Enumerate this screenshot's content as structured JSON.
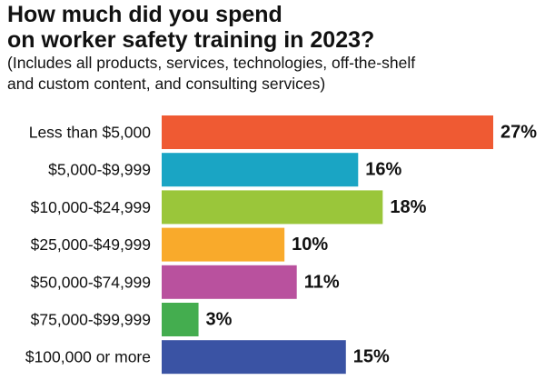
{
  "chart_data": {
    "type": "bar",
    "orientation": "horizontal",
    "title": "How much did you spend on worker safety training in 2023?",
    "title_lines": [
      "How much did you spend",
      "on worker safety training in 2023?"
    ],
    "subtitle": "(Includes all products, services, technologies, off-the-shelf and custom content, and consulting services)",
    "subtitle_lines": [
      "(Includes all products, services, technologies, off-the-shelf",
      "and custom content, and consulting services)"
    ],
    "categories": [
      "Less than $5,000",
      "$5,000-$9,999",
      "$10,000-$24,999",
      "$25,000-$49,999",
      "$50,000-$74,999",
      "$75,000-$99,999",
      "$100,000 or more"
    ],
    "values": [
      27,
      16,
      18,
      10,
      11,
      3,
      15
    ],
    "value_labels": [
      "27%",
      "16%",
      "18%",
      "10%",
      "11%",
      "3%",
      "15%"
    ],
    "bar_colors": [
      "#ef5a33",
      "#1aa5c4",
      "#9ac63a",
      "#f9aa2b",
      "#b9519e",
      "#44ad4f",
      "#3a53a4"
    ],
    "xlim": [
      0,
      27
    ],
    "grid": false,
    "legend": "none"
  }
}
